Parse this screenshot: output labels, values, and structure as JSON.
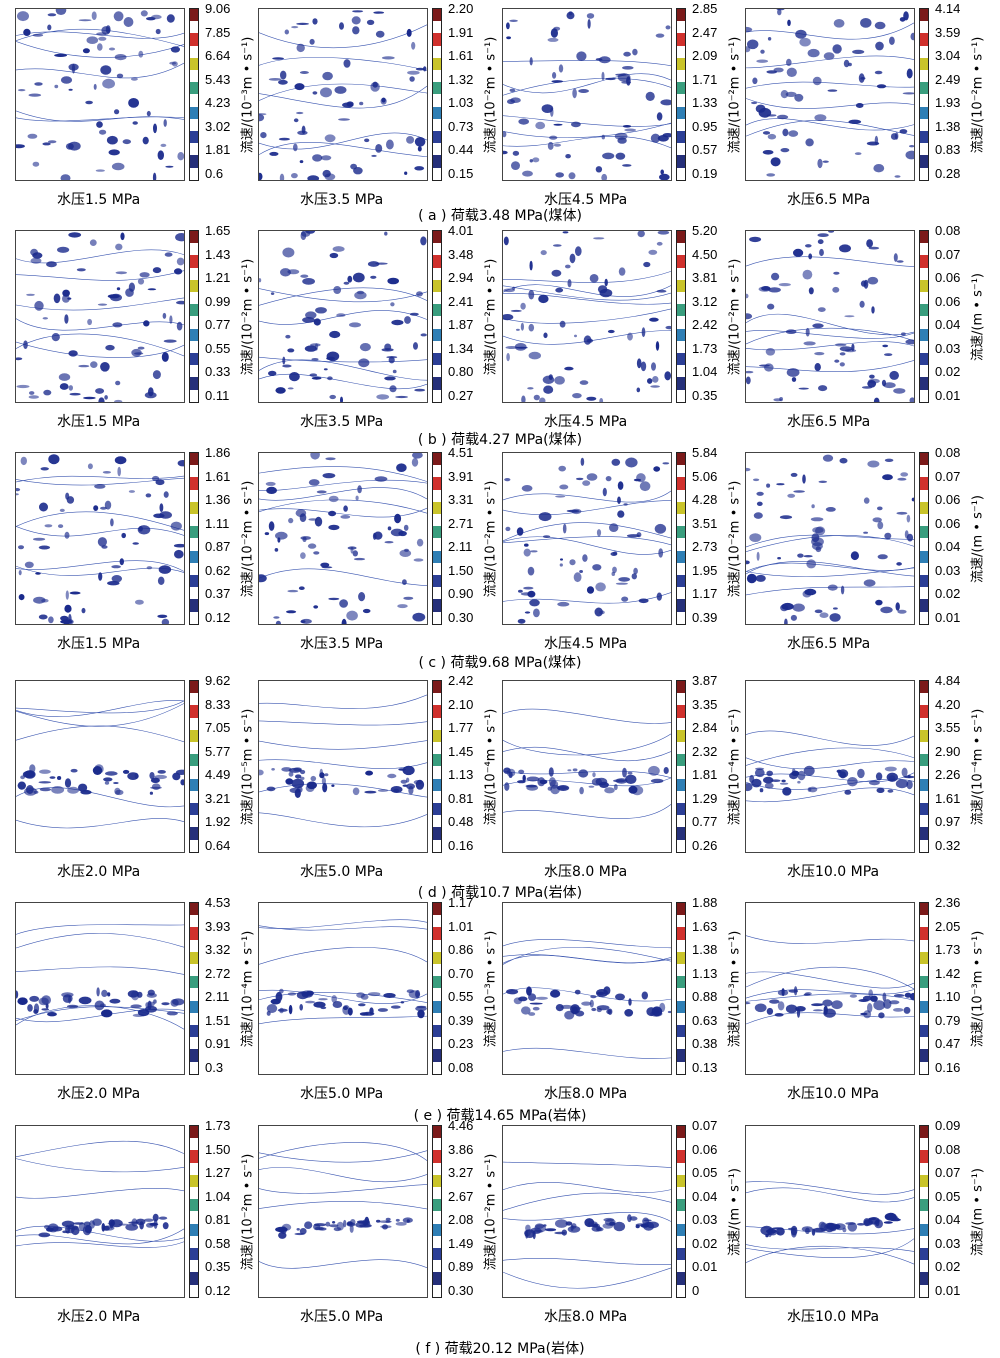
{
  "figure": {
    "rows": [
      {
        "caption": "( a ) 荷载3.48 MPa(煤体)",
        "panels": [
          {
            "label": "水压1.5 MPa",
            "unit": "流速/(10⁻³m • s⁻¹)",
            "ticks": [
              "9.06",
              "7.85",
              "6.64",
              "5.43",
              "4.23",
              "3.02",
              "1.81",
              "0.6"
            ]
          },
          {
            "label": "水压3.5 MPa",
            "unit": "流速/(10⁻²m • s⁻¹)",
            "ticks": [
              "2.20",
              "1.91",
              "1.61",
              "1.32",
              "1.03",
              "0.73",
              "0.44",
              "0.15"
            ]
          },
          {
            "label": "水压4.5 MPa",
            "unit": "流速/(10⁻²m • s⁻¹)",
            "ticks": [
              "2.85",
              "2.47",
              "2.09",
              "1.71",
              "1.33",
              "0.95",
              "0.57",
              "0.19"
            ]
          },
          {
            "label": "水压6.5 MPa",
            "unit": "流速/(10⁻²m • s⁻¹)",
            "ticks": [
              "4.14",
              "3.59",
              "3.04",
              "2.49",
              "1.93",
              "1.38",
              "0.83",
              "0.28"
            ]
          }
        ]
      },
      {
        "caption": "( b ) 荷载4.27 MPa(煤体)",
        "panels": [
          {
            "label": "水压1.5 MPa",
            "unit": "流速/(10⁻²m • s⁻¹)",
            "ticks": [
              "1.65",
              "1.43",
              "1.21",
              "0.99",
              "0.77",
              "0.55",
              "0.33",
              "0.11"
            ]
          },
          {
            "label": "水压3.5 MPa",
            "unit": "流速/(10⁻²m • s⁻¹)",
            "ticks": [
              "4.01",
              "3.48",
              "2.94",
              "2.41",
              "1.87",
              "1.34",
              "0.80",
              "0.27"
            ]
          },
          {
            "label": "水压4.5 MPa",
            "unit": "流速/(10⁻²m • s⁻¹)",
            "ticks": [
              "5.20",
              "4.50",
              "3.81",
              "3.12",
              "2.42",
              "1.73",
              "1.04",
              "0.35"
            ]
          },
          {
            "label": "水压6.5 MPa",
            "unit": "流速/(m • s⁻¹)",
            "ticks": [
              "0.08",
              "0.07",
              "0.06",
              "0.06",
              "0.04",
              "0.03",
              "0.02",
              "0.01"
            ]
          }
        ]
      },
      {
        "caption": "( c ) 荷载9.68 MPa(煤体)",
        "panels": [
          {
            "label": "水压1.5 MPa",
            "unit": "流速/(10⁻²m • s⁻¹)",
            "ticks": [
              "1.86",
              "1.61",
              "1.36",
              "1.11",
              "0.87",
              "0.62",
              "0.37",
              "0.12"
            ]
          },
          {
            "label": "水压3.5 MPa",
            "unit": "流速/(10⁻²m • s⁻¹)",
            "ticks": [
              "4.51",
              "3.91",
              "3.31",
              "2.71",
              "2.11",
              "1.50",
              "0.90",
              "0.30"
            ]
          },
          {
            "label": "水压4.5 MPa",
            "unit": "流速/(10⁻²m • s⁻¹)",
            "ticks": [
              "5.84",
              "5.06",
              "4.28",
              "3.51",
              "2.73",
              "1.95",
              "1.17",
              "0.39"
            ]
          },
          {
            "label": "水压6.5 MPa",
            "unit": "流速/(m • s⁻¹)",
            "ticks": [
              "0.08",
              "0.07",
              "0.06",
              "0.06",
              "0.04",
              "0.03",
              "0.02",
              "0.01"
            ]
          }
        ]
      },
      {
        "caption": "( d ) 荷载10.7 MPa(岩体)",
        "panels": [
          {
            "label": "水压2.0 MPa",
            "unit": "流速/(10⁻⁵m • s⁻¹)",
            "ticks": [
              "9.62",
              "8.33",
              "7.05",
              "5.77",
              "4.49",
              "3.21",
              "1.92",
              "0.64"
            ]
          },
          {
            "label": "水压5.0 MPa",
            "unit": "流速/(10⁻⁴m • s⁻¹)",
            "ticks": [
              "2.42",
              "2.10",
              "1.77",
              "1.45",
              "1.13",
              "0.81",
              "0.48",
              "0.16"
            ]
          },
          {
            "label": "水压8.0 MPa",
            "unit": "流速/(10⁻⁴m • s⁻¹)",
            "ticks": [
              "3.87",
              "3.35",
              "2.84",
              "2.32",
              "1.81",
              "1.29",
              "0.77",
              "0.26"
            ]
          },
          {
            "label": "水压10.0 MPa",
            "unit": "流速/(10⁻⁴m • s⁻¹)",
            "ticks": [
              "4.84",
              "4.20",
              "3.55",
              "2.90",
              "2.26",
              "1.61",
              "0.97",
              "0.32"
            ]
          }
        ]
      },
      {
        "caption": "( e ) 荷载14.65 MPa(岩体)",
        "panels": [
          {
            "label": "水压2.0 MPa",
            "unit": "流速/(10⁻⁴m • s⁻¹)",
            "ticks": [
              "4.53",
              "3.93",
              "3.32",
              "2.72",
              "2.11",
              "1.51",
              "0.91",
              "0.3"
            ]
          },
          {
            "label": "水压5.0 MPa",
            "unit": "流速/(10⁻³m • s⁻¹)",
            "ticks": [
              "1.17",
              "1.01",
              "0.86",
              "0.70",
              "0.55",
              "0.39",
              "0.23",
              "0.08"
            ]
          },
          {
            "label": "水压8.0 MPa",
            "unit": "流速/(10⁻³m • s⁻¹)",
            "ticks": [
              "1.88",
              "1.63",
              "1.38",
              "1.13",
              "0.88",
              "0.63",
              "0.38",
              "0.13"
            ]
          },
          {
            "label": "水压10.0 MPa",
            "unit": "流速/(10⁻³m • s⁻¹)",
            "ticks": [
              "2.36",
              "2.05",
              "1.73",
              "1.42",
              "1.10",
              "0.79",
              "0.47",
              "0.16"
            ]
          }
        ]
      },
      {
        "caption": "( f ) 荷载20.12 MPa(岩体)",
        "panels": [
          {
            "label": "水压2.0 MPa",
            "unit": "流速/(10⁻²m • s⁻¹)",
            "ticks": [
              "1.73",
              "1.50",
              "1.27",
              "1.04",
              "0.81",
              "0.58",
              "0.35",
              "0.12"
            ]
          },
          {
            "label": "水压5.0 MPa",
            "unit": "流速/(10⁻²m • s⁻¹)",
            "ticks": [
              "4.46",
              "3.86",
              "3.27",
              "2.67",
              "2.08",
              "1.49",
              "0.89",
              "0.30"
            ]
          },
          {
            "label": "水压8.0 MPa",
            "unit": "流速/(m • s⁻¹)",
            "ticks": [
              "0.07",
              "0.06",
              "0.05",
              "0.04",
              "0.03",
              "0.02",
              "0.01",
              "0"
            ]
          },
          {
            "label": "水压10.0 MPa",
            "unit": "流速/(m • s⁻¹)",
            "ticks": [
              "0.09",
              "0.08",
              "0.07",
              "0.05",
              "0.04",
              "0.03",
              "0.02",
              "0.01"
            ]
          }
        ]
      }
    ]
  },
  "colors": {
    "colorbar": [
      "#7b1a1a",
      "#ffffff",
      "#d0312d",
      "#ffffff",
      "#c9c42a",
      "#ffffff",
      "#3a9e7e",
      "#ffffff",
      "#2f7fb5",
      "#ffffff",
      "#2c3f96",
      "#ffffff",
      "#26307a",
      "#ffffff"
    ],
    "map_blue": "#1a2a8c",
    "map_line": "#3a55b0"
  }
}
